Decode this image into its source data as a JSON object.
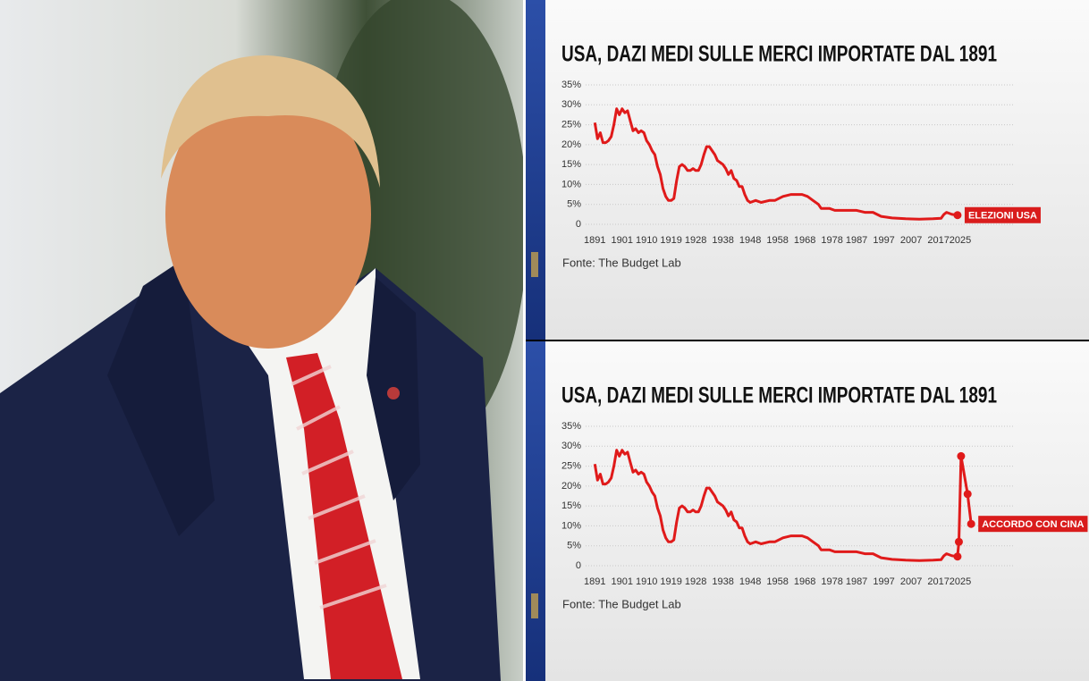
{
  "chart_data": [
    {
      "type": "line",
      "title": "USA, DAZI MEDI SULLE MERCI IMPORTATE DAL 1891",
      "source": "Fonte: The Budget Lab",
      "annotation": "ELEZIONI USA",
      "x": [
        1891,
        1892,
        1893,
        1894,
        1895,
        1896,
        1897,
        1898,
        1899,
        1900,
        1901,
        1902,
        1903,
        1904,
        1905,
        1906,
        1907,
        1908,
        1909,
        1910,
        1911,
        1912,
        1913,
        1914,
        1915,
        1916,
        1917,
        1918,
        1919,
        1920,
        1921,
        1922,
        1923,
        1924,
        1925,
        1926,
        1927,
        1928,
        1929,
        1930,
        1931,
        1932,
        1933,
        1934,
        1935,
        1936,
        1937,
        1938,
        1939,
        1940,
        1941,
        1942,
        1943,
        1944,
        1945,
        1946,
        1947,
        1948,
        1950,
        1952,
        1955,
        1957,
        1960,
        1963,
        1965,
        1967,
        1969,
        1971,
        1973,
        1974,
        1977,
        1979,
        1981,
        1985,
        1987,
        1990,
        1993,
        1996,
        2000,
        2005,
        2010,
        2015,
        2018,
        2019,
        2020,
        2022,
        2024
      ],
      "values": [
        25.5,
        21.5,
        23,
        20.5,
        20.5,
        21,
        22,
        25,
        29,
        27.5,
        29,
        28,
        28.5,
        26,
        23.5,
        24,
        23,
        23.5,
        23,
        21,
        20,
        18.5,
        17.5,
        14.5,
        12.5,
        9,
        7,
        6,
        6,
        6.5,
        11,
        14.5,
        15,
        14.5,
        13.5,
        13.5,
        14,
        13.5,
        13.5,
        15,
        17.5,
        19.5,
        19.5,
        18.5,
        17.5,
        16,
        15.5,
        15,
        14,
        12.5,
        13.5,
        11.5,
        11,
        9.5,
        9.5,
        7.5,
        6,
        5.5,
        6,
        5.5,
        6,
        6,
        7,
        7.5,
        7.5,
        7.5,
        7,
        6,
        5,
        4,
        4,
        3.5,
        3.5,
        3.5,
        3.5,
        3,
        3,
        2,
        1.6,
        1.4,
        1.3,
        1.4,
        1.5,
        2.5,
        3,
        2.5,
        2.3
      ],
      "color": "#e01a1a",
      "markers": 1,
      "xlim": [
        1886,
        2045
      ],
      "xticks": [
        1891,
        1901,
        1910,
        1919,
        1928,
        1938,
        1948,
        1958,
        1968,
        1978,
        1987,
        1997,
        2007,
        2017,
        2025
      ],
      "ylim": [
        0,
        35
      ],
      "yticks": [
        0,
        {
          "value": 5,
          "label": "5%"
        },
        {
          "value": 10,
          "label": "10%"
        },
        {
          "value": 15,
          "label": "15%"
        },
        {
          "value": 20,
          "label": "20%"
        },
        {
          "value": 25,
          "label": "25%"
        },
        {
          "value": 30,
          "label": "30%"
        },
        {
          "value": 35,
          "label": "35%"
        }
      ],
      "grid": true
    },
    {
      "type": "line",
      "title": "USA, DAZI MEDI SULLE MERCI IMPORTATE DAL 1891",
      "source": "Fonte: The Budget Lab",
      "annotation": "ACCORDO CON CINA",
      "x": [
        1891,
        1892,
        1893,
        1894,
        1895,
        1896,
        1897,
        1898,
        1899,
        1900,
        1901,
        1902,
        1903,
        1904,
        1905,
        1906,
        1907,
        1908,
        1909,
        1910,
        1911,
        1912,
        1913,
        1914,
        1915,
        1916,
        1917,
        1918,
        1919,
        1920,
        1921,
        1922,
        1923,
        1924,
        1925,
        1926,
        1927,
        1928,
        1929,
        1930,
        1931,
        1932,
        1933,
        1934,
        1935,
        1936,
        1937,
        1938,
        1939,
        1940,
        1941,
        1942,
        1943,
        1944,
        1945,
        1946,
        1947,
        1948,
        1950,
        1952,
        1955,
        1957,
        1960,
        1963,
        1965,
        1967,
        1969,
        1971,
        1973,
        1974,
        1977,
        1979,
        1981,
        1985,
        1987,
        1990,
        1993,
        1996,
        2000,
        2005,
        2010,
        2015,
        2018,
        2019,
        2020,
        2022,
        2024,
        2024.5,
        2025.3,
        2027.7,
        2029
      ],
      "values": [
        25.5,
        21.5,
        23,
        20.5,
        20.5,
        21,
        22,
        25,
        29,
        27.5,
        29,
        28,
        28.5,
        26,
        23.5,
        24,
        23,
        23.5,
        23,
        21,
        20,
        18.5,
        17.5,
        14.5,
        12.5,
        9,
        7,
        6,
        6,
        6.5,
        11,
        14.5,
        15,
        14.5,
        13.5,
        13.5,
        14,
        13.5,
        13.5,
        15,
        17.5,
        19.5,
        19.5,
        18.5,
        17.5,
        16,
        15.5,
        15,
        14,
        12.5,
        13.5,
        11.5,
        11,
        9.5,
        9.5,
        7.5,
        6,
        5.5,
        6,
        5.5,
        6,
        6,
        7,
        7.5,
        7.5,
        7.5,
        7,
        6,
        5,
        4,
        4,
        3.5,
        3.5,
        3.5,
        3.5,
        3,
        3,
        2,
        1.6,
        1.4,
        1.3,
        1.4,
        1.5,
        2.5,
        3,
        2.5,
        2.3,
        6,
        27.5,
        18,
        10.5
      ],
      "color": "#e01a1a",
      "markers": 5,
      "xlim": [
        1886,
        2045
      ],
      "xticks": [
        1891,
        1901,
        1910,
        1919,
        1928,
        1938,
        1948,
        1958,
        1968,
        1978,
        1987,
        1997,
        2007,
        2017,
        2025
      ],
      "ylim": [
        0,
        35
      ],
      "yticks": [
        0,
        {
          "value": 5,
          "label": "5%"
        },
        {
          "value": 10,
          "label": "10%"
        },
        {
          "value": 15,
          "label": "15%"
        },
        {
          "value": 20,
          "label": "20%"
        },
        {
          "value": 25,
          "label": "25%"
        },
        {
          "value": 30,
          "label": "30%"
        },
        {
          "value": 35,
          "label": "35%"
        }
      ],
      "grid": true
    }
  ]
}
